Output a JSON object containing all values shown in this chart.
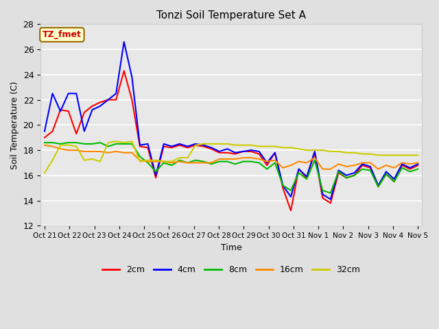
{
  "title": "Tonzi Soil Temperature Set A",
  "xlabel": "Time",
  "ylabel": "Soil Temperature (C)",
  "ylim": [
    12,
    28
  ],
  "yticks": [
    12,
    14,
    16,
    18,
    20,
    22,
    24,
    26,
    28
  ],
  "x_labels": [
    "Oct 21",
    "Oct 22",
    "Oct 23",
    "Oct 24",
    "Oct 25",
    "Oct 26",
    "Oct 27",
    "Oct 28",
    "Oct 29",
    "Oct 30",
    "Oct 31",
    "Nov 1",
    "Nov 2",
    "Nov 3",
    "Nov 4",
    "Nov 5"
  ],
  "annotation_text": "TZ_fmet",
  "annotation_color": "#cc0000",
  "annotation_bg": "#ffffcc",
  "annotation_border": "#996600",
  "series": {
    "2cm": {
      "color": "#ff0000",
      "values": [
        19.0,
        19.5,
        21.2,
        21.1,
        19.3,
        21.0,
        21.5,
        21.8,
        22.0,
        22.0,
        24.3,
        22.0,
        18.3,
        18.2,
        15.8,
        18.3,
        18.2,
        18.4,
        18.2,
        18.4,
        18.3,
        18.1,
        17.8,
        17.8,
        17.7,
        17.9,
        17.9,
        17.7,
        16.8,
        17.8,
        15.0,
        13.2,
        16.5,
        15.8,
        17.8,
        14.2,
        13.8,
        16.2,
        15.8,
        16.0,
        16.8,
        16.6,
        15.1,
        16.1,
        15.5,
        16.8,
        16.5,
        16.8
      ]
    },
    "4cm": {
      "color": "#0000ff",
      "values": [
        19.5,
        22.5,
        21.1,
        22.5,
        22.5,
        19.5,
        21.2,
        21.5,
        22.0,
        22.5,
        26.6,
        23.8,
        18.4,
        18.5,
        16.0,
        18.5,
        18.3,
        18.5,
        18.3,
        18.5,
        18.4,
        18.2,
        17.9,
        18.1,
        17.8,
        17.9,
        18.0,
        17.9,
        17.0,
        17.8,
        15.2,
        14.3,
        16.5,
        15.9,
        17.9,
        14.5,
        14.1,
        16.4,
        16.0,
        16.2,
        16.9,
        16.7,
        15.2,
        16.3,
        15.7,
        16.9,
        16.6,
        16.9
      ]
    },
    "8cm": {
      "color": "#00bb00",
      "values": [
        18.6,
        18.6,
        18.5,
        18.6,
        18.6,
        18.5,
        18.5,
        18.6,
        18.3,
        18.5,
        18.5,
        18.5,
        17.5,
        17.0,
        16.3,
        17.0,
        16.8,
        17.2,
        17.0,
        17.2,
        17.1,
        16.9,
        17.1,
        17.1,
        16.9,
        17.1,
        17.1,
        17.0,
        16.5,
        17.0,
        15.2,
        14.8,
        16.2,
        15.7,
        17.2,
        14.8,
        14.6,
        16.3,
        15.8,
        16.0,
        16.5,
        16.4,
        15.1,
        16.1,
        15.5,
        16.6,
        16.3,
        16.5
      ]
    },
    "16cm": {
      "color": "#ff8800",
      "values": [
        18.4,
        18.3,
        18.1,
        18.0,
        18.0,
        17.9,
        17.9,
        17.9,
        17.8,
        17.9,
        17.8,
        17.8,
        17.2,
        17.1,
        17.1,
        17.1,
        17.0,
        17.1,
        17.0,
        17.0,
        17.0,
        17.0,
        17.3,
        17.3,
        17.3,
        17.4,
        17.4,
        17.3,
        17.1,
        17.2,
        16.6,
        16.8,
        17.1,
        17.0,
        17.4,
        16.5,
        16.5,
        16.9,
        16.7,
        16.8,
        17.0,
        17.0,
        16.5,
        16.8,
        16.6,
        17.0,
        16.9,
        17.0
      ]
    },
    "32cm": {
      "color": "#cccc00",
      "values": [
        16.2,
        17.2,
        18.4,
        18.4,
        18.3,
        17.2,
        17.3,
        17.1,
        18.6,
        18.7,
        18.6,
        18.7,
        17.1,
        17.2,
        17.2,
        17.1,
        17.1,
        17.4,
        17.4,
        18.4,
        18.5,
        18.5,
        18.5,
        18.5,
        18.4,
        18.4,
        18.4,
        18.3,
        18.3,
        18.3,
        18.2,
        18.2,
        18.1,
        18.0,
        18.0,
        18.0,
        17.9,
        17.9,
        17.8,
        17.8,
        17.7,
        17.7,
        17.6,
        17.6,
        17.6,
        17.6,
        17.6,
        17.6
      ]
    }
  },
  "legend_labels": [
    "2cm",
    "4cm",
    "8cm",
    "16cm",
    "32cm"
  ],
  "legend_colors": [
    "#ff0000",
    "#0000ff",
    "#00bb00",
    "#ff8800",
    "#cccc00"
  ],
  "fig_bg_color": "#e0e0e0",
  "plot_bg_color": "#e8e8e8",
  "grid_color": "#ffffff",
  "figsize": [
    6.4,
    4.8
  ],
  "dpi": 100
}
